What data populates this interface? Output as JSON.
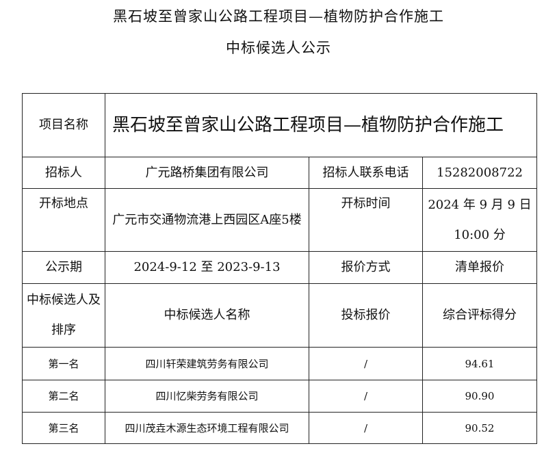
{
  "header": {
    "title_line1": "黑石坡至曾家山公路工程项目—植物防护合作施工",
    "title_line2": "中标候选人公示"
  },
  "table": {
    "project_name_label": "项目名称",
    "project_name": "黑石坡至曾家山公路工程项目—植物防护合作施工",
    "tenderer_label": "招标人",
    "tenderer": "广元路桥集团有限公司",
    "tenderer_phone_label": "招标人联系电话",
    "tenderer_phone": "15282008722",
    "opening_place_label": "开标地点",
    "opening_place": "广元市交通物流港上西园区A座5楼",
    "opening_time_label": "开标时间",
    "opening_time": "2024 年 9 月 9 日 10:00 分",
    "publicity_period_label": "公示期",
    "publicity_period": "2024-9-12 至 2023-9-13",
    "quote_method_label": "报价方式",
    "quote_method": "清单报价",
    "candidates_header": {
      "rank": "中标候选人及排序",
      "name": "中标候选人名称",
      "bid_price": "投标报价",
      "score": "综合评标得分"
    },
    "candidates": [
      {
        "rank": "第一名",
        "name": "四川轩荣建筑劳务有限公司",
        "bid_price": "/",
        "score": "94.61"
      },
      {
        "rank": "第二名",
        "name": "四川忆柴劳务有限公司",
        "bid_price": "/",
        "score": "90.90"
      },
      {
        "rank": "第三名",
        "name": "四川茂垚木源生态环境工程有限公司",
        "bid_price": "/",
        "score": "90.52"
      }
    ]
  }
}
